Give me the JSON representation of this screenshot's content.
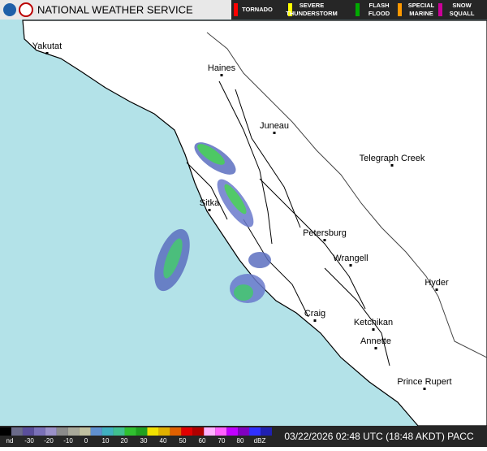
{
  "header": {
    "title": "NATIONAL WEATHER SERVICE"
  },
  "warnings": [
    {
      "lines": [
        "TORNADO"
      ]
    },
    {
      "lines": [
        "SEVERE",
        "THUNDERSTORM"
      ]
    },
    {
      "lines": [
        "FLASH",
        "FLOOD"
      ]
    },
    {
      "lines": [
        "SPECIAL",
        "MARINE"
      ]
    },
    {
      "lines": [
        "SNOW",
        "SQUALL"
      ]
    }
  ],
  "places": [
    "Yakutat",
    "Haines",
    "Juneau",
    "Telegraph Creek",
    "Sitka",
    "Petersburg",
    "Wrangell",
    "Hyder",
    "Craig",
    "Ketchikan",
    "Annette",
    "Prince Rupert"
  ],
  "scale": {
    "labels": [
      "nd",
      "-30",
      "-20",
      "-10",
      "0",
      "10",
      "20",
      "30",
      "40",
      "50",
      "60",
      "70",
      "80",
      "dBZ"
    ]
  },
  "timestamp": "03/22/2026 02:48 UTC (18:48 AKDT) PACC"
}
